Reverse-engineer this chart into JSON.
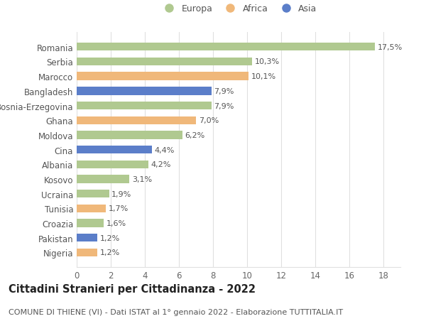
{
  "countries": [
    "Romania",
    "Serbia",
    "Marocco",
    "Bangladesh",
    "Bosnia-Erzegovina",
    "Ghana",
    "Moldova",
    "Cina",
    "Albania",
    "Kosovo",
    "Ucraina",
    "Tunisia",
    "Croazia",
    "Pakistan",
    "Nigeria"
  ],
  "values": [
    17.5,
    10.3,
    10.1,
    7.9,
    7.9,
    7.0,
    6.2,
    4.4,
    4.2,
    3.1,
    1.9,
    1.7,
    1.6,
    1.2,
    1.2
  ],
  "labels": [
    "17,5%",
    "10,3%",
    "10,1%",
    "7,9%",
    "7,9%",
    "7,0%",
    "6,2%",
    "4,4%",
    "4,2%",
    "3,1%",
    "1,9%",
    "1,7%",
    "1,6%",
    "1,2%",
    "1,2%"
  ],
  "continents": [
    "Europa",
    "Europa",
    "Africa",
    "Asia",
    "Europa",
    "Africa",
    "Europa",
    "Asia",
    "Europa",
    "Europa",
    "Europa",
    "Africa",
    "Europa",
    "Asia",
    "Africa"
  ],
  "colors": {
    "Europa": "#b0c990",
    "Africa": "#f0b87a",
    "Asia": "#5b7ec9"
  },
  "legend_order": [
    "Europa",
    "Africa",
    "Asia"
  ],
  "title": "Cittadini Stranieri per Cittadinanza - 2022",
  "subtitle": "COMUNE DI THIENE (VI) - Dati ISTAT al 1° gennaio 2022 - Elaborazione TUTTITALIA.IT",
  "xlim": [
    0,
    19
  ],
  "xticks": [
    0,
    2,
    4,
    6,
    8,
    10,
    12,
    14,
    16,
    18
  ],
  "bg_color": "#ffffff",
  "grid_color": "#e0e0e0",
  "title_fontsize": 10.5,
  "subtitle_fontsize": 8,
  "label_fontsize": 8,
  "ytick_fontsize": 8.5,
  "xtick_fontsize": 8.5,
  "legend_fontsize": 9,
  "bar_height": 0.55
}
